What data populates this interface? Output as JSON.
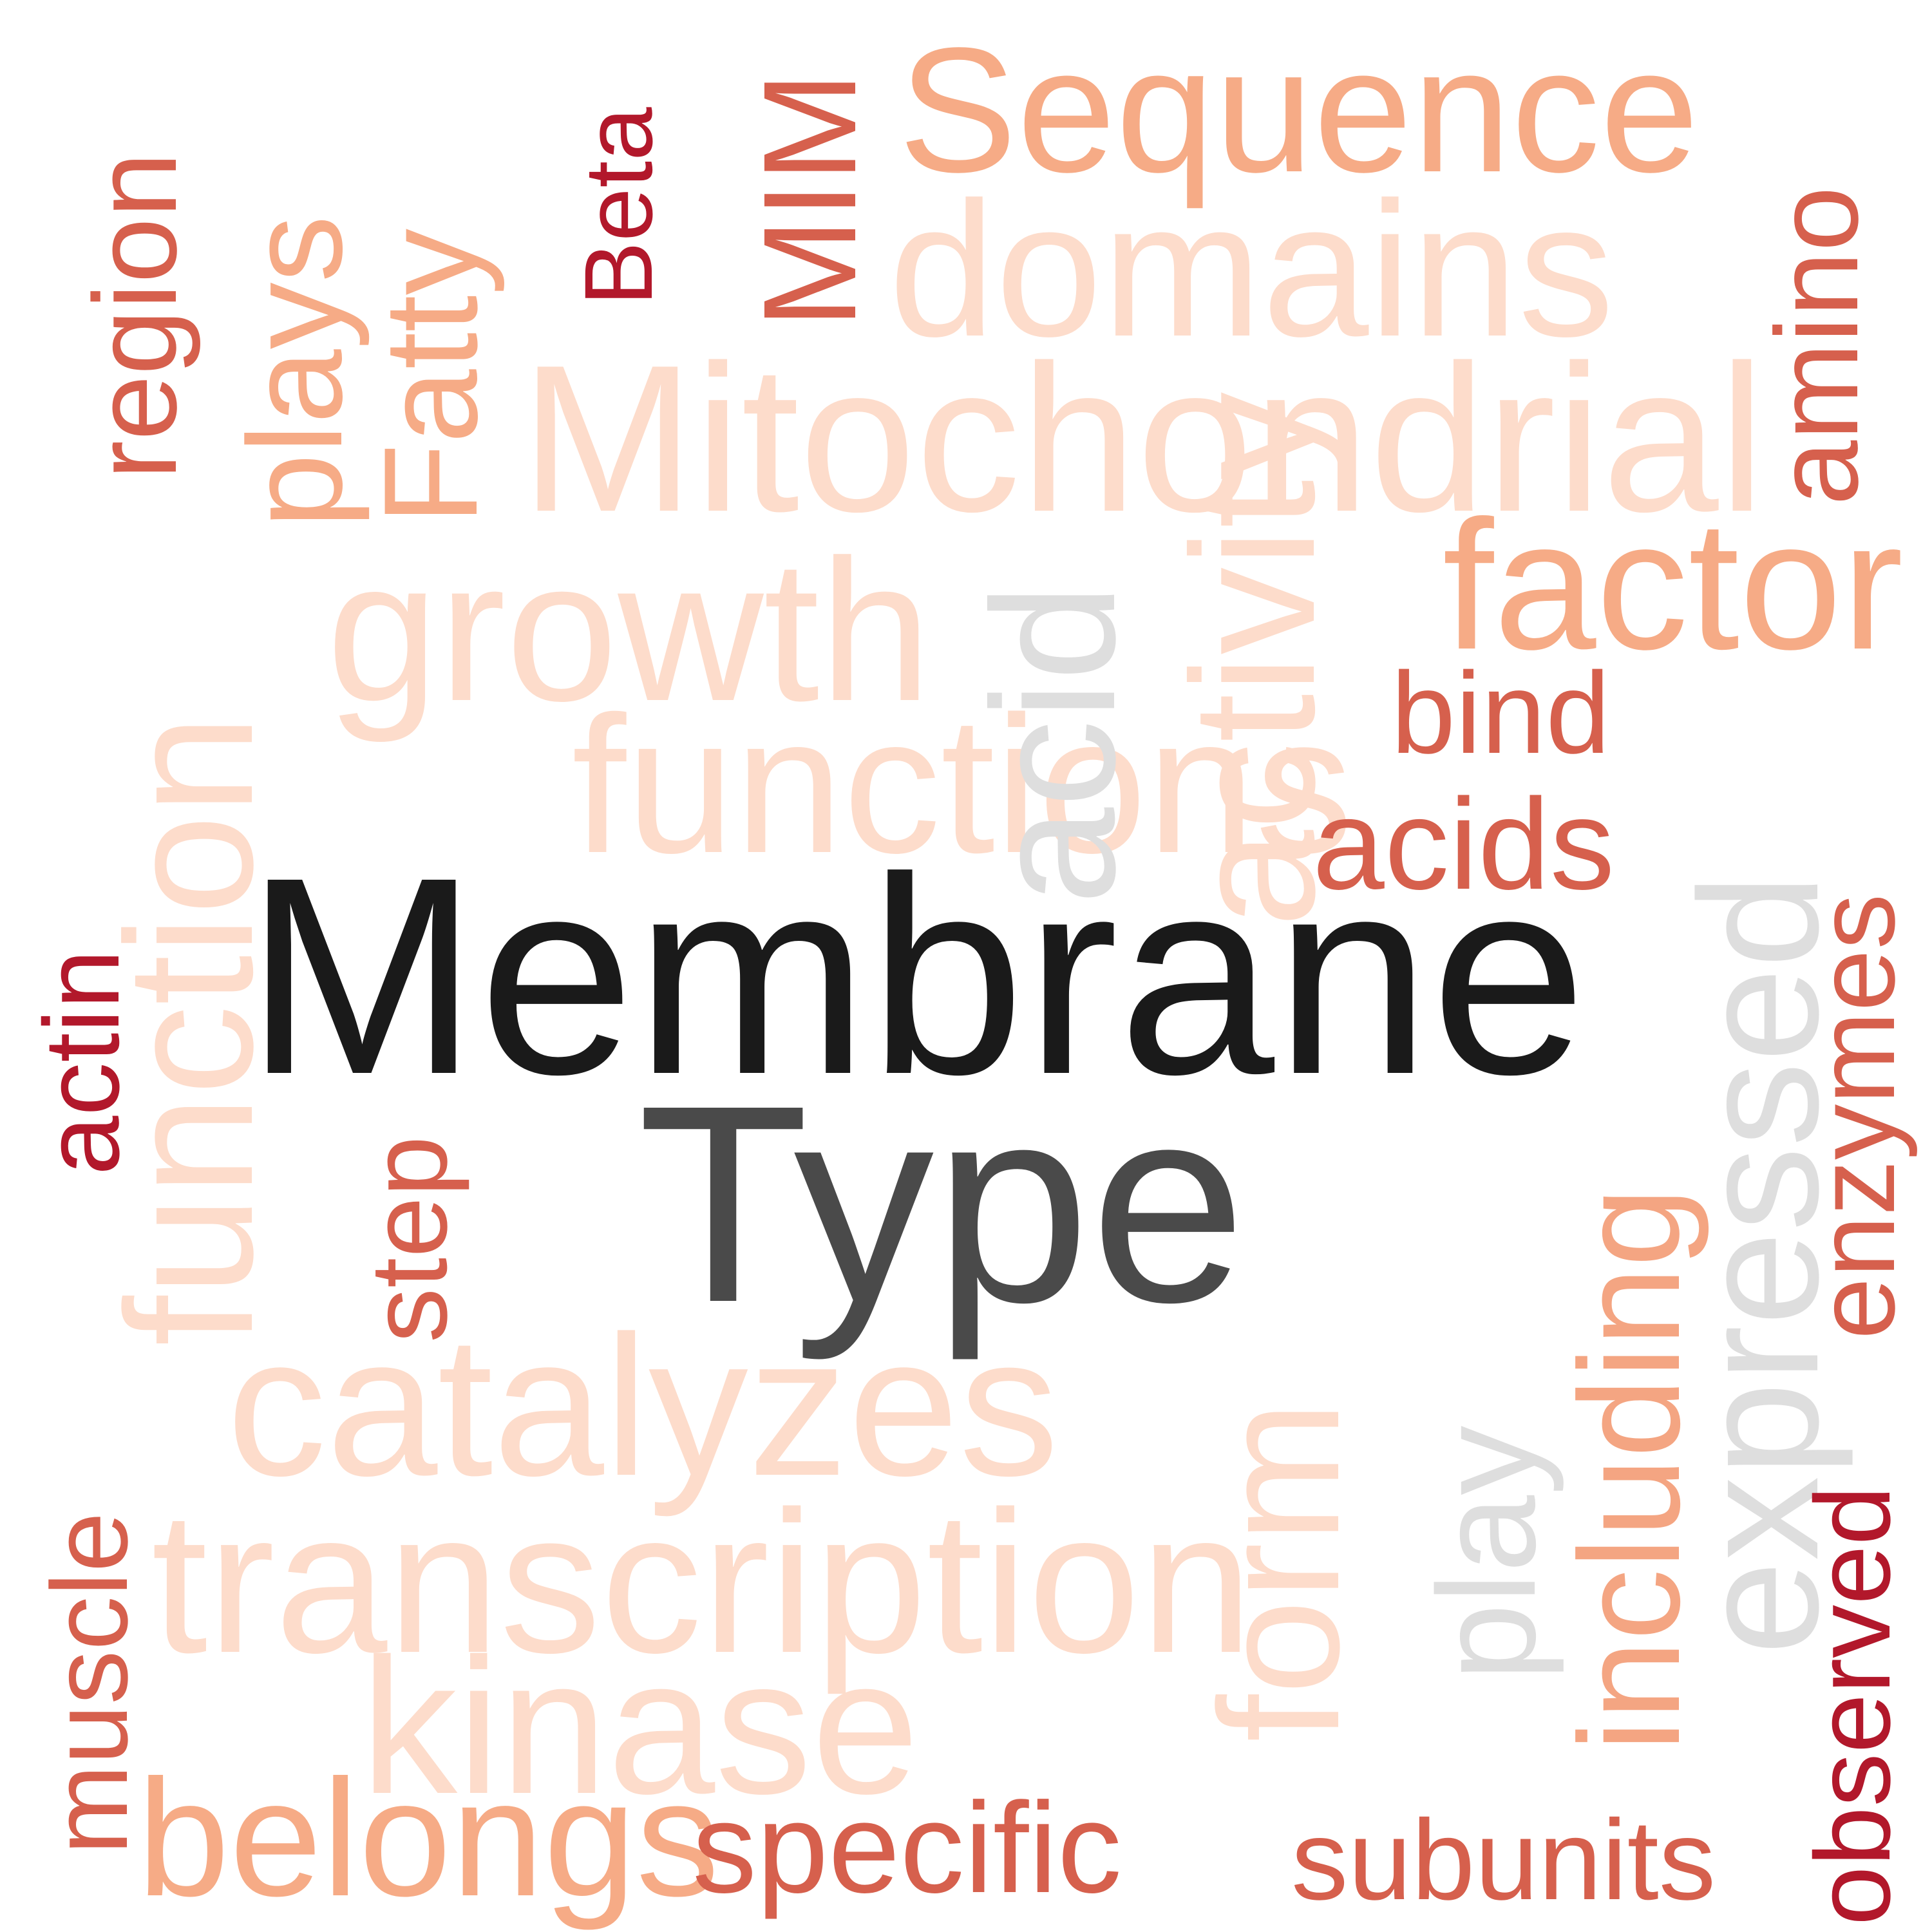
{
  "colors": {
    "black": "#1a1a1a",
    "dark_gray": "#4a4a4a",
    "light_gray": "#dedede",
    "palest": "#fddccb",
    "light_salmon": "#f6ab86",
    "salmon": "#f4a582",
    "coral": "#d6604d",
    "dark_red": "#b2182b"
  },
  "words": [
    {
      "id": "membrane",
      "text": "Membrane",
      "color": "black"
    },
    {
      "id": "type",
      "text": "Type",
      "color": "dark_gray"
    },
    {
      "id": "mitochondrial",
      "text": "Mitochondrial",
      "color": "palest"
    },
    {
      "id": "transcription",
      "text": "transcription",
      "color": "palest"
    },
    {
      "id": "catalyzes",
      "text": "catalyzes",
      "color": "palest"
    },
    {
      "id": "growth",
      "text": "growth",
      "color": "palest"
    },
    {
      "id": "domains",
      "text": "domains",
      "color": "palest"
    },
    {
      "id": "kinase",
      "text": "kinase",
      "color": "palest"
    },
    {
      "id": "functions",
      "text": "functions",
      "color": "palest"
    },
    {
      "id": "function",
      "text": "function",
      "color": "palest"
    },
    {
      "id": "form",
      "text": "form",
      "color": "palest"
    },
    {
      "id": "activity",
      "text": "activity",
      "color": "palest"
    },
    {
      "id": "play",
      "text": "play",
      "color": "light_gray"
    },
    {
      "id": "acid",
      "text": "acid",
      "color": "light_gray"
    },
    {
      "id": "expressed",
      "text": "expressed",
      "color": "light_gray"
    },
    {
      "id": "sequence",
      "text": "Sequence",
      "color": "light_salmon"
    },
    {
      "id": "factor",
      "text": "factor",
      "color": "light_salmon"
    },
    {
      "id": "belongs",
      "text": "belongs",
      "color": "light_salmon"
    },
    {
      "id": "plays",
      "text": "plays",
      "color": "light_salmon"
    },
    {
      "id": "fatty",
      "text": "Fatty",
      "color": "light_salmon"
    },
    {
      "id": "including",
      "text": "including",
      "color": "salmon"
    },
    {
      "id": "specific",
      "text": "specific",
      "color": "coral"
    },
    {
      "id": "subunits",
      "text": "subunits",
      "color": "coral"
    },
    {
      "id": "acids",
      "text": "acids",
      "color": "coral"
    },
    {
      "id": "bind",
      "text": "bind",
      "color": "coral"
    },
    {
      "id": "region",
      "text": "region",
      "color": "coral"
    },
    {
      "id": "mim",
      "text": "MIM",
      "color": "coral"
    },
    {
      "id": "amino",
      "text": "amino",
      "color": "coral"
    },
    {
      "id": "step",
      "text": "step",
      "color": "coral"
    },
    {
      "id": "muscle",
      "text": "muscle",
      "color": "coral"
    },
    {
      "id": "enzymes",
      "text": "enzymes",
      "color": "coral"
    },
    {
      "id": "beta",
      "text": "Beta",
      "color": "dark_red"
    },
    {
      "id": "actin",
      "text": "actin",
      "color": "dark_red"
    },
    {
      "id": "observed",
      "text": "observed",
      "color": "dark_red"
    }
  ]
}
